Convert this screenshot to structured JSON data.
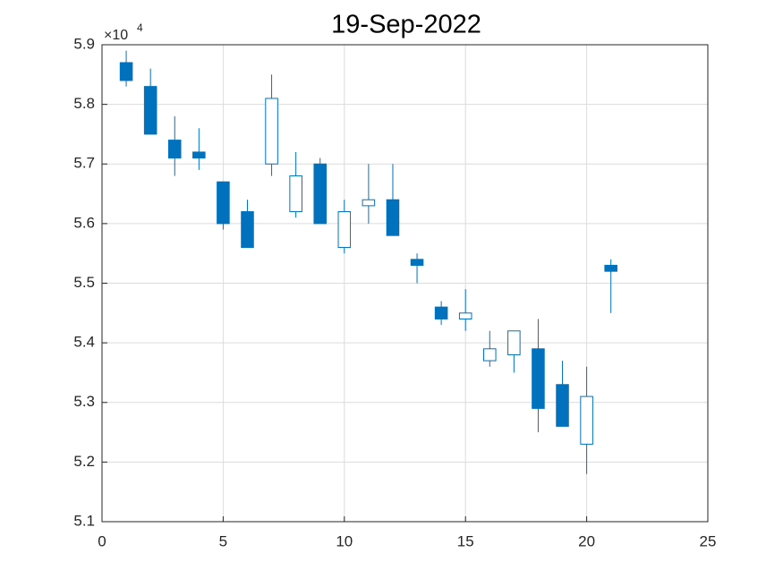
{
  "chart_data": {
    "type": "candlestick",
    "title": "19-Sep-2022",
    "y_multiplier": {
      "base": "×10",
      "exponent": "4"
    },
    "x": [
      1,
      2,
      3,
      4,
      5,
      6,
      7,
      8,
      9,
      10,
      11,
      12,
      13,
      14,
      15,
      16,
      17,
      18,
      19,
      20,
      21
    ],
    "open": [
      5.87,
      5.83,
      5.74,
      5.72,
      5.67,
      5.62,
      5.7,
      5.62,
      5.7,
      5.56,
      5.63,
      5.64,
      5.54,
      5.46,
      5.44,
      5.37,
      5.38,
      5.39,
      5.33,
      5.23,
      5.53
    ],
    "high": [
      5.89,
      5.86,
      5.78,
      5.76,
      5.67,
      5.64,
      5.85,
      5.72,
      5.71,
      5.64,
      5.7,
      5.7,
      5.55,
      5.47,
      5.49,
      5.42,
      5.42,
      5.44,
      5.37,
      5.36,
      5.54
    ],
    "low": [
      5.83,
      5.75,
      5.68,
      5.69,
      5.59,
      5.56,
      5.68,
      5.61,
      5.6,
      5.55,
      5.6,
      5.58,
      5.5,
      5.43,
      5.42,
      5.36,
      5.35,
      5.25,
      5.26,
      5.18,
      5.45
    ],
    "close": [
      5.84,
      5.75,
      5.71,
      5.71,
      5.6,
      5.56,
      5.81,
      5.68,
      5.6,
      5.62,
      5.64,
      5.58,
      5.53,
      5.44,
      5.45,
      5.39,
      5.42,
      5.29,
      5.26,
      5.31,
      5.52
    ],
    "color": "#0072bd",
    "xlim": [
      0,
      25
    ],
    "xticks": [
      0,
      5,
      10,
      15,
      20,
      25
    ],
    "ylim": [
      5.1,
      5.9
    ],
    "yticks": [
      5.1,
      5.2,
      5.3,
      5.4,
      5.5,
      5.6,
      5.7,
      5.8,
      5.9
    ],
    "grid": true
  }
}
